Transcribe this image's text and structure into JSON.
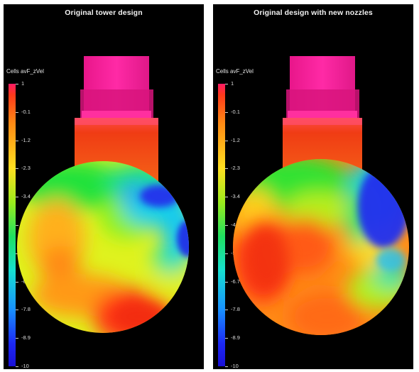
{
  "panels": [
    {
      "title": "Original tower design"
    },
    {
      "title": "Original design with new nozzles"
    }
  ],
  "colorbar": {
    "title": "Cells avF_zVel",
    "ticks": [
      "1",
      "-0.1",
      "-1.2",
      "-2.3",
      "-3.4",
      "-4.5",
      "-5.6",
      "-6.7",
      "-7.8",
      "-8.9",
      "-10"
    ]
  },
  "colors": {
    "tower_top": "#f51f9a",
    "tower_body": "#f04a1e",
    "background": "#000000"
  }
}
